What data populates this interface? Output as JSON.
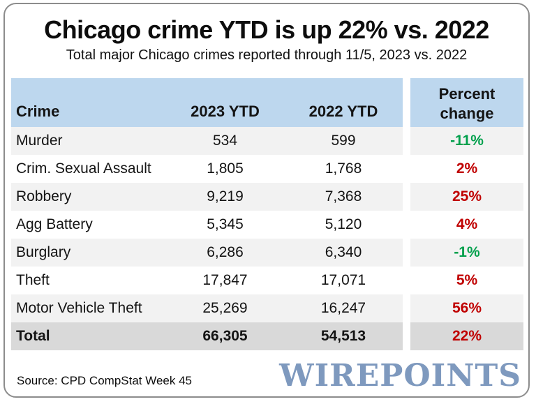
{
  "title": "Chicago crime YTD is up 22% vs. 2022",
  "subtitle": "Total major Chicago crimes reported through 11/5, 2023 vs. 2022",
  "table": {
    "headers": {
      "crime": "Crime",
      "ytd2023": "2023 YTD",
      "ytd2022": "2022 YTD",
      "percent_change": "Percent change"
    },
    "rows": [
      {
        "crime": "Murder",
        "ytd2023": "534",
        "ytd2022": "599",
        "percent_change": "-11%"
      },
      {
        "crime": "Crim. Sexual Assault",
        "ytd2023": "1,805",
        "ytd2022": "1,768",
        "percent_change": "2%"
      },
      {
        "crime": "Robbery",
        "ytd2023": "9,219",
        "ytd2022": "7,368",
        "percent_change": "25%"
      },
      {
        "crime": "Agg Battery",
        "ytd2023": "5,345",
        "ytd2022": "5,120",
        "percent_change": "4%"
      },
      {
        "crime": "Burglary",
        "ytd2023": "6,286",
        "ytd2022": "6,340",
        "percent_change": "-1%"
      },
      {
        "crime": "Theft",
        "ytd2023": "17,847",
        "ytd2022": "17,071",
        "percent_change": "5%"
      },
      {
        "crime": "Motor Vehicle Theft",
        "ytd2023": "25,269",
        "ytd2022": "16,247",
        "percent_change": "56%"
      },
      {
        "crime": "Total",
        "ytd2023": "66,305",
        "ytd2022": "54,513",
        "percent_change": "22%"
      }
    ]
  },
  "source": "Source: CPD CompStat Week 45",
  "logo_text": "WIREPOINTS",
  "colors": {
    "decrease_green": "#00a04c",
    "increase_red": "#c00000",
    "header_blue": "#bdd7ee",
    "stripe_gray": "#f2f2f2",
    "total_gray": "#d9d9d9",
    "logo_blue": "#7e99be",
    "border_gray": "#8c8c8c"
  },
  "chart_data": {
    "type": "table",
    "title": "Chicago crime YTD is up 22% vs. 2022",
    "subtitle": "Total major Chicago crimes reported through 11/5, 2023 vs. 2022",
    "columns": [
      "Crime",
      "2023 YTD",
      "2022 YTD",
      "Percent change"
    ],
    "rows": [
      [
        "Murder",
        534,
        599,
        "-11%"
      ],
      [
        "Crim. Sexual Assault",
        1805,
        1768,
        "2%"
      ],
      [
        "Robbery",
        9219,
        7368,
        "25%"
      ],
      [
        "Agg Battery",
        5345,
        5120,
        "4%"
      ],
      [
        "Burglary",
        6286,
        6340,
        "-1%"
      ],
      [
        "Theft",
        17847,
        17071,
        "5%"
      ],
      [
        "Motor Vehicle Theft",
        25269,
        16247,
        "56%"
      ],
      [
        "Total",
        66305,
        54513,
        "22%"
      ]
    ],
    "notes": "Negative percent changes shown in green, positive in red",
    "source": "Source: CPD CompStat Week 45"
  }
}
